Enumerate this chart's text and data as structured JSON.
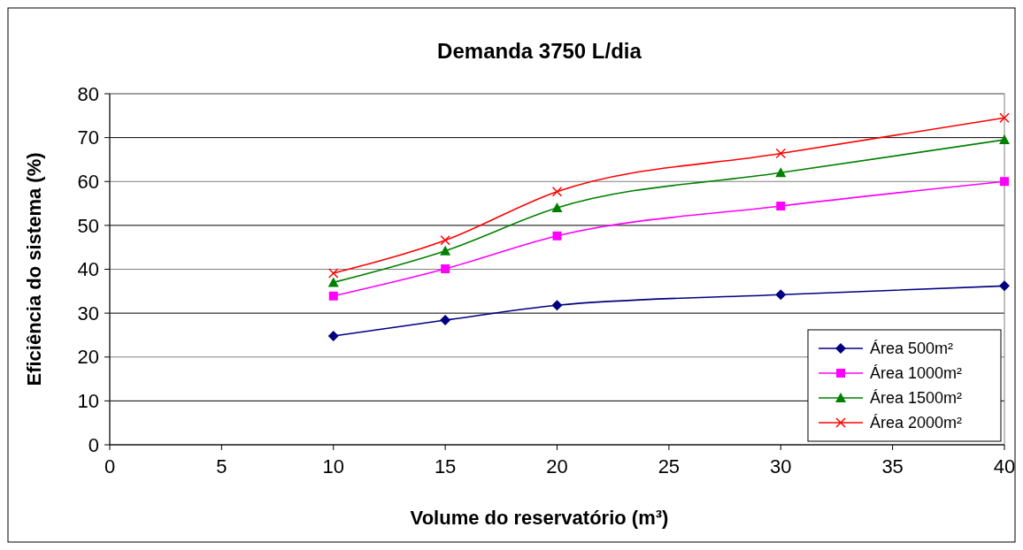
{
  "chart_data": {
    "type": "line",
    "title": "Demanda 3750 L/dia",
    "xlabel": "Volume do reservatório (m³)",
    "ylabel": "Eficiência do sistema (%)",
    "x": [
      10,
      15,
      20,
      30,
      40
    ],
    "series": [
      {
        "name": "Área 500m²",
        "color": "#000080",
        "marker": "diamond",
        "values": [
          24.8,
          28.4,
          31.8,
          34.2,
          36.2
        ]
      },
      {
        "name": "Área 1000m²",
        "color": "#ff00ff",
        "marker": "square",
        "values": [
          33.9,
          40.1,
          47.6,
          54.4,
          60.0
        ]
      },
      {
        "name": "Área 1500m²",
        "color": "#008000",
        "marker": "triangle",
        "values": [
          37.0,
          44.2,
          54.0,
          62.0,
          69.5
        ]
      },
      {
        "name": "Área 2000m²",
        "color": "#ff0000",
        "marker": "cross",
        "values": [
          39.1,
          46.6,
          57.7,
          66.4,
          74.5
        ]
      }
    ],
    "xlim": [
      0,
      40
    ],
    "xticks": [
      0,
      5,
      10,
      15,
      20,
      25,
      30,
      35,
      40
    ],
    "ylim": [
      0,
      80
    ],
    "yticks": [
      0,
      10,
      20,
      30,
      40,
      50,
      60,
      70,
      80
    ],
    "grid": "y",
    "legend": "bottom right",
    "line_style": "solid"
  }
}
